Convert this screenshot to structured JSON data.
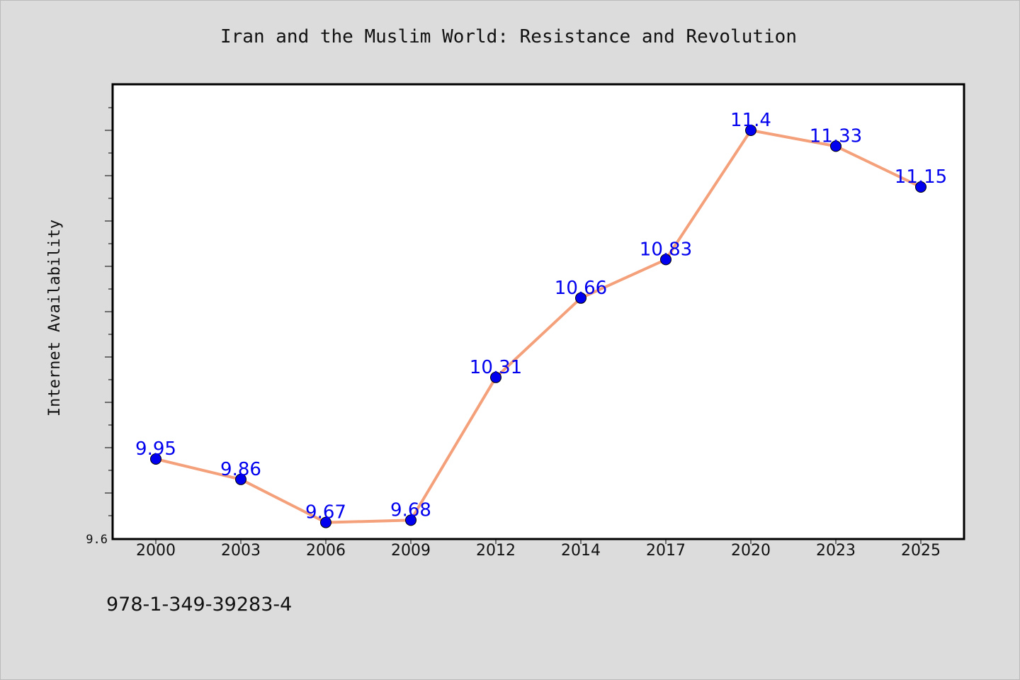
{
  "chart_data": {
    "type": "line",
    "title": "Iran and the Muslim World: Resistance and Revolution",
    "xlabel": "",
    "ylabel": "Internet Availability",
    "categories": [
      "2000",
      "2003",
      "2006",
      "2009",
      "2012",
      "2014",
      "2017",
      "2020",
      "2023",
      "2025"
    ],
    "series": [
      {
        "values": [
          9.95,
          9.86,
          9.67,
          9.68,
          10.31,
          10.66,
          10.83,
          11.4,
          11.33,
          11.15
        ],
        "data_labels": [
          "9.95",
          "9.86",
          "9.67",
          "9.68",
          "10.31",
          "10.66",
          "10.83",
          "11.4",
          "11.33",
          "11.15"
        ],
        "line_color": "#f4a07a",
        "marker_color": "#0000ee",
        "label_color": "#0000ee"
      }
    ],
    "ylim": [
      9.6,
      11.6
    ],
    "y_tick_label": "9.6",
    "y_minor_tick_step": 0.1,
    "y_major_tick_step": 0.2,
    "grid": false,
    "legend": "none"
  },
  "footer": {
    "isbn": "978-1-349-39283-4"
  }
}
